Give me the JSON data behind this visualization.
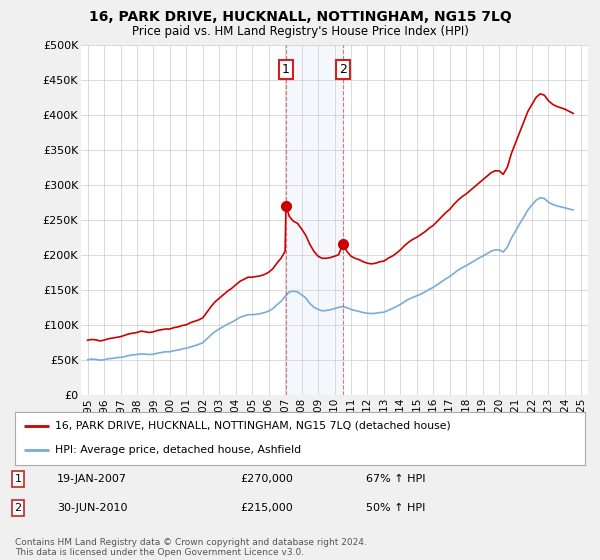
{
  "title": "16, PARK DRIVE, HUCKNALL, NOTTINGHAM, NG15 7LQ",
  "subtitle": "Price paid vs. HM Land Registry's House Price Index (HPI)",
  "ylim": [
    0,
    500000
  ],
  "yticks": [
    0,
    50000,
    100000,
    150000,
    200000,
    250000,
    300000,
    350000,
    400000,
    450000,
    500000
  ],
  "ytick_labels": [
    "£0",
    "£50K",
    "£100K",
    "£150K",
    "£200K",
    "£250K",
    "£300K",
    "£350K",
    "£400K",
    "£450K",
    "£500K"
  ],
  "xlim_start": 1994.6,
  "xlim_end": 2025.4,
  "background_color": "#f0f0f0",
  "plot_bg_color": "#ffffff",
  "grid_color": "#cccccc",
  "red_line_color": "#cc0000",
  "blue_line_color": "#7aabdb",
  "transaction1": {
    "date_num": 2007.05,
    "price": 270000,
    "label": "1",
    "date_str": "19-JAN-2007",
    "price_str": "£270,000",
    "pct_str": "67% ↑ HPI"
  },
  "transaction2": {
    "date_num": 2010.5,
    "price": 215000,
    "label": "2",
    "date_str": "30-JUN-2010",
    "price_str": "£215,000",
    "pct_str": "50% ↑ HPI"
  },
  "legend_line1": "16, PARK DRIVE, HUCKNALL, NOTTINGHAM, NG15 7LQ (detached house)",
  "legend_line2": "HPI: Average price, detached house, Ashfield",
  "footer": "Contains HM Land Registry data © Crown copyright and database right 2024.\nThis data is licensed under the Open Government Licence v3.0.",
  "red_hpi_data": [
    [
      1995.0,
      78000
    ],
    [
      1995.25,
      79000
    ],
    [
      1995.5,
      78500
    ],
    [
      1995.75,
      77000
    ],
    [
      1996.0,
      78000
    ],
    [
      1996.25,
      80000
    ],
    [
      1996.5,
      81000
    ],
    [
      1996.75,
      82000
    ],
    [
      1997.0,
      83000
    ],
    [
      1997.25,
      85000
    ],
    [
      1997.5,
      87000
    ],
    [
      1997.75,
      88000
    ],
    [
      1998.0,
      89000
    ],
    [
      1998.25,
      91000
    ],
    [
      1998.5,
      90000
    ],
    [
      1998.75,
      89000
    ],
    [
      1999.0,
      90000
    ],
    [
      1999.25,
      92000
    ],
    [
      1999.5,
      93000
    ],
    [
      1999.75,
      94000
    ],
    [
      2000.0,
      94000
    ],
    [
      2000.25,
      96000
    ],
    [
      2000.5,
      97000
    ],
    [
      2000.75,
      99000
    ],
    [
      2001.0,
      100000
    ],
    [
      2001.25,
      103000
    ],
    [
      2001.5,
      105000
    ],
    [
      2001.75,
      107000
    ],
    [
      2002.0,
      110000
    ],
    [
      2002.25,
      118000
    ],
    [
      2002.5,
      126000
    ],
    [
      2002.75,
      133000
    ],
    [
      2003.0,
      138000
    ],
    [
      2003.25,
      143000
    ],
    [
      2003.5,
      148000
    ],
    [
      2003.75,
      152000
    ],
    [
      2004.0,
      157000
    ],
    [
      2004.25,
      162000
    ],
    [
      2004.5,
      165000
    ],
    [
      2004.75,
      168000
    ],
    [
      2005.0,
      168000
    ],
    [
      2005.25,
      169000
    ],
    [
      2005.5,
      170000
    ],
    [
      2005.75,
      172000
    ],
    [
      2006.0,
      175000
    ],
    [
      2006.25,
      180000
    ],
    [
      2006.5,
      188000
    ],
    [
      2006.75,
      195000
    ],
    [
      2007.0,
      205000
    ],
    [
      2007.05,
      270000
    ],
    [
      2007.25,
      255000
    ],
    [
      2007.5,
      248000
    ],
    [
      2007.75,
      245000
    ],
    [
      2008.0,
      237000
    ],
    [
      2008.25,
      228000
    ],
    [
      2008.5,
      215000
    ],
    [
      2008.75,
      205000
    ],
    [
      2009.0,
      198000
    ],
    [
      2009.25,
      195000
    ],
    [
      2009.5,
      195000
    ],
    [
      2009.75,
      196000
    ],
    [
      2010.0,
      198000
    ],
    [
      2010.25,
      200000
    ],
    [
      2010.5,
      215000
    ],
    [
      2010.75,
      205000
    ],
    [
      2011.0,
      198000
    ],
    [
      2011.25,
      195000
    ],
    [
      2011.5,
      193000
    ],
    [
      2011.75,
      190000
    ],
    [
      2012.0,
      188000
    ],
    [
      2012.25,
      187000
    ],
    [
      2012.5,
      188000
    ],
    [
      2012.75,
      190000
    ],
    [
      2013.0,
      191000
    ],
    [
      2013.25,
      195000
    ],
    [
      2013.5,
      198000
    ],
    [
      2013.75,
      202000
    ],
    [
      2014.0,
      207000
    ],
    [
      2014.25,
      213000
    ],
    [
      2014.5,
      218000
    ],
    [
      2014.75,
      222000
    ],
    [
      2015.0,
      225000
    ],
    [
      2015.25,
      229000
    ],
    [
      2015.5,
      233000
    ],
    [
      2015.75,
      238000
    ],
    [
      2016.0,
      242000
    ],
    [
      2016.25,
      248000
    ],
    [
      2016.5,
      254000
    ],
    [
      2016.75,
      260000
    ],
    [
      2017.0,
      265000
    ],
    [
      2017.25,
      272000
    ],
    [
      2017.5,
      278000
    ],
    [
      2017.75,
      283000
    ],
    [
      2018.0,
      287000
    ],
    [
      2018.25,
      292000
    ],
    [
      2018.5,
      297000
    ],
    [
      2018.75,
      302000
    ],
    [
      2019.0,
      307000
    ],
    [
      2019.25,
      312000
    ],
    [
      2019.5,
      317000
    ],
    [
      2019.75,
      320000
    ],
    [
      2020.0,
      320000
    ],
    [
      2020.25,
      315000
    ],
    [
      2020.5,
      325000
    ],
    [
      2020.75,
      345000
    ],
    [
      2021.0,
      360000
    ],
    [
      2021.25,
      375000
    ],
    [
      2021.5,
      390000
    ],
    [
      2021.75,
      405000
    ],
    [
      2022.0,
      415000
    ],
    [
      2022.25,
      425000
    ],
    [
      2022.5,
      430000
    ],
    [
      2022.75,
      428000
    ],
    [
      2023.0,
      420000
    ],
    [
      2023.25,
      415000
    ],
    [
      2023.5,
      412000
    ],
    [
      2023.75,
      410000
    ],
    [
      2024.0,
      408000
    ],
    [
      2024.25,
      405000
    ],
    [
      2024.5,
      402000
    ]
  ],
  "blue_hpi_data": [
    [
      1995.0,
      50000
    ],
    [
      1995.25,
      51000
    ],
    [
      1995.5,
      50500
    ],
    [
      1995.75,
      49500
    ],
    [
      1996.0,
      50000
    ],
    [
      1996.25,
      51500
    ],
    [
      1996.5,
      52000
    ],
    [
      1996.75,
      53000
    ],
    [
      1997.0,
      53500
    ],
    [
      1997.25,
      54500
    ],
    [
      1997.5,
      56000
    ],
    [
      1997.75,
      57000
    ],
    [
      1998.0,
      57500
    ],
    [
      1998.25,
      58500
    ],
    [
      1998.5,
      58000
    ],
    [
      1998.75,
      57500
    ],
    [
      1999.0,
      58000
    ],
    [
      1999.25,
      59500
    ],
    [
      1999.5,
      60500
    ],
    [
      1999.75,
      61500
    ],
    [
      2000.0,
      61500
    ],
    [
      2000.25,
      63000
    ],
    [
      2000.5,
      64000
    ],
    [
      2000.75,
      65500
    ],
    [
      2001.0,
      66500
    ],
    [
      2001.25,
      68500
    ],
    [
      2001.5,
      70000
    ],
    [
      2001.75,
      72000
    ],
    [
      2002.0,
      74500
    ],
    [
      2002.25,
      80000
    ],
    [
      2002.5,
      85500
    ],
    [
      2002.75,
      90500
    ],
    [
      2003.0,
      94000
    ],
    [
      2003.25,
      97500
    ],
    [
      2003.5,
      101000
    ],
    [
      2003.75,
      103500
    ],
    [
      2004.0,
      107000
    ],
    [
      2004.25,
      110500
    ],
    [
      2004.5,
      112500
    ],
    [
      2004.75,
      114500
    ],
    [
      2005.0,
      114500
    ],
    [
      2005.25,
      115000
    ],
    [
      2005.5,
      116000
    ],
    [
      2005.75,
      117500
    ],
    [
      2006.0,
      119500
    ],
    [
      2006.25,
      123000
    ],
    [
      2006.5,
      128500
    ],
    [
      2006.75,
      133500
    ],
    [
      2007.0,
      140500
    ],
    [
      2007.25,
      147000
    ],
    [
      2007.5,
      148000
    ],
    [
      2007.75,
      147000
    ],
    [
      2008.0,
      143000
    ],
    [
      2008.25,
      138500
    ],
    [
      2008.5,
      130500
    ],
    [
      2008.75,
      125000
    ],
    [
      2009.0,
      122000
    ],
    [
      2009.25,
      120000
    ],
    [
      2009.5,
      120500
    ],
    [
      2009.75,
      121500
    ],
    [
      2010.0,
      123000
    ],
    [
      2010.25,
      125000
    ],
    [
      2010.5,
      126000
    ],
    [
      2010.75,
      124500
    ],
    [
      2011.0,
      122000
    ],
    [
      2011.25,
      120500
    ],
    [
      2011.5,
      119000
    ],
    [
      2011.75,
      117500
    ],
    [
      2012.0,
      116500
    ],
    [
      2012.25,
      116000
    ],
    [
      2012.5,
      116500
    ],
    [
      2012.75,
      117500
    ],
    [
      2013.0,
      118000
    ],
    [
      2013.25,
      120500
    ],
    [
      2013.5,
      123000
    ],
    [
      2013.75,
      126000
    ],
    [
      2014.0,
      129000
    ],
    [
      2014.25,
      133000
    ],
    [
      2014.5,
      136500
    ],
    [
      2014.75,
      139000
    ],
    [
      2015.0,
      141500
    ],
    [
      2015.25,
      144000
    ],
    [
      2015.5,
      147000
    ],
    [
      2015.75,
      150500
    ],
    [
      2016.0,
      153500
    ],
    [
      2016.25,
      157500
    ],
    [
      2016.5,
      161500
    ],
    [
      2016.75,
      165500
    ],
    [
      2017.0,
      169000
    ],
    [
      2017.25,
      173500
    ],
    [
      2017.5,
      178000
    ],
    [
      2017.75,
      181500
    ],
    [
      2018.0,
      184500
    ],
    [
      2018.25,
      188000
    ],
    [
      2018.5,
      191500
    ],
    [
      2018.75,
      195000
    ],
    [
      2019.0,
      198000
    ],
    [
      2019.25,
      201500
    ],
    [
      2019.5,
      205000
    ],
    [
      2019.75,
      207000
    ],
    [
      2020.0,
      207000
    ],
    [
      2020.25,
      204000
    ],
    [
      2020.5,
      211000
    ],
    [
      2020.75,
      224000
    ],
    [
      2021.0,
      234000
    ],
    [
      2021.25,
      244500
    ],
    [
      2021.5,
      254000
    ],
    [
      2021.75,
      264000
    ],
    [
      2022.0,
      271500
    ],
    [
      2022.25,
      278000
    ],
    [
      2022.5,
      281500
    ],
    [
      2022.75,
      280500
    ],
    [
      2023.0,
      275000
    ],
    [
      2023.25,
      272000
    ],
    [
      2023.5,
      270000
    ],
    [
      2023.75,
      268500
    ],
    [
      2024.0,
      267000
    ],
    [
      2024.25,
      265500
    ],
    [
      2024.5,
      264000
    ]
  ]
}
